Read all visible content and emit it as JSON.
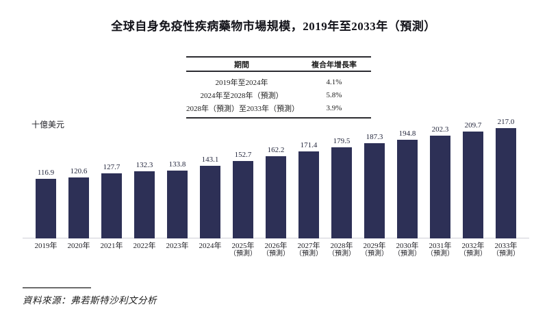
{
  "page": {
    "title": "全球自身免疫性疾病藥物市場規模，2019年至2033年（預測）",
    "unit_label": "十億美元",
    "source": "資料來源：弗若斯特沙利文分析"
  },
  "chart_data": {
    "type": "bar",
    "title": "全球自身免疫性疾病藥物市場規模，2019年至2033年（預測）",
    "ylabel": "十億美元",
    "xlabel": "",
    "categories": [
      "2019年",
      "2020年",
      "2021年",
      "2022年",
      "2023年",
      "2024年",
      "2025年（預測）",
      "2026年（預測）",
      "2027年（預測）",
      "2028年（預測）",
      "2029年（預測）",
      "2030年（預測）",
      "2031年（預測）",
      "2032年（預測）",
      "2033年（預測）"
    ],
    "values": [
      116.9,
      120.6,
      127.7,
      132.3,
      133.8,
      143.1,
      152.7,
      162.2,
      171.4,
      179.5,
      187.3,
      194.8,
      202.3,
      209.7,
      217.0
    ],
    "ylim": [
      0,
      230
    ],
    "grid": false,
    "legend_position": "none",
    "bar_color": "#2d3056",
    "cagr_table": {
      "headers": [
        "期間",
        "複合年增長率"
      ],
      "rows": [
        {
          "period": "2019年至2024年",
          "cagr": "4.1%"
        },
        {
          "period": "2024年至2028年（預測）",
          "cagr": "5.8%"
        },
        {
          "period": "2028年（預測）至2033年（預測）",
          "cagr": "3.9%"
        }
      ]
    }
  }
}
